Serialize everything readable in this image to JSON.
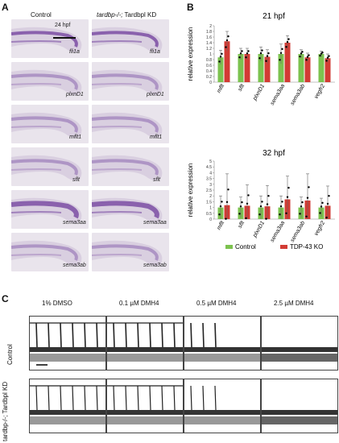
{
  "panelA": {
    "letter": "A",
    "col_control": "Control",
    "col_kd_italic": "tardbp-/-;",
    "col_kd_rest": " Tardbpl KD",
    "stage": "24 hpf",
    "rows": [
      {
        "gene": "fli1a"
      },
      {
        "gene": "plxnD1"
      },
      {
        "gene": "mflt1"
      },
      {
        "gene": "sflt"
      },
      {
        "gene": "sema3aa"
      },
      {
        "gene": "sema3ab"
      }
    ]
  },
  "panelB": {
    "letter": "B",
    "legend": {
      "control": "Control",
      "ko": "TDP-43 KO"
    }
  },
  "panelC": {
    "letter": "C",
    "columns": [
      "1% DMSO",
      "0.1 µM DMH4",
      "0.5 µM DMH4",
      "2.5 µM DMH4"
    ],
    "row_control": "Control",
    "row_kd": "tardbp-/-; Tardbpl KD"
  },
  "colors": {
    "control": "#7cc24f",
    "ko": "#d23b34",
    "stain": "#7b4ea3"
  },
  "chart_data": [
    {
      "type": "bar",
      "title": "21 hpf",
      "ylabel": "relative expression",
      "ylim": [
        0,
        2
      ],
      "yticks": [
        "0",
        "0.2",
        "0.4",
        "0.6",
        "0.8",
        "1",
        "1.2",
        "1.4",
        "1.6",
        "1.8",
        "2"
      ],
      "categories": [
        "mflt",
        "sflt",
        "plxnD1",
        "sema3aa",
        "sema3ab",
        "vegfr2"
      ],
      "series": [
        {
          "name": "Control",
          "values": [
            0.88,
            1.0,
            1.0,
            1.0,
            1.0,
            1.0
          ],
          "errors": [
            0.25,
            0.2,
            0.25,
            0.35,
            0.15,
            0.1
          ]
        },
        {
          "name": "TDP-43 KO",
          "values": [
            1.45,
            1.0,
            0.9,
            1.4,
            0.88,
            0.85
          ],
          "errors": [
            0.35,
            0.2,
            0.25,
            0.25,
            0.15,
            0.15
          ]
        }
      ]
    },
    {
      "type": "bar",
      "title": "32 hpf",
      "ylabel": "relative expression",
      "ylim": [
        0,
        5
      ],
      "yticks": [
        "0",
        "0.5",
        "1",
        "1.5",
        "2",
        "2.5",
        "3",
        "3.5",
        "4",
        "4.5",
        "5"
      ],
      "categories": [
        "mflt",
        "sflt",
        "plxnD1",
        "sema3aa",
        "sema3ab",
        "vegfr2"
      ],
      "series": [
        {
          "name": "Control",
          "values": [
            1.0,
            1.0,
            1.0,
            1.0,
            1.0,
            1.0
          ],
          "errors": [
            1.0,
            0.9,
            1.0,
            1.0,
            0.9,
            0.8
          ]
        },
        {
          "name": "TDP-43 KO",
          "values": [
            1.2,
            1.15,
            1.1,
            1.7,
            1.6,
            1.15
          ],
          "errors": [
            2.7,
            1.8,
            1.8,
            2.0,
            2.3,
            1.7
          ]
        }
      ]
    }
  ]
}
